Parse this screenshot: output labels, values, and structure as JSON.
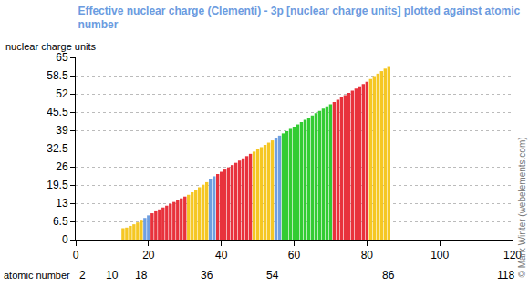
{
  "chart_data": {
    "type": "bar",
    "title": "Effective nuclear charge (Clementi) - 3p [nuclear charge units] plotted against atomic number",
    "ylabel": "nuclear charge units",
    "xlabel": "atomic number",
    "copyright": "© Mark Winter (webelements.com)",
    "x": [
      13,
      14,
      15,
      16,
      17,
      18,
      19,
      20,
      21,
      22,
      23,
      24,
      25,
      26,
      27,
      28,
      29,
      30,
      31,
      32,
      33,
      34,
      35,
      36,
      37,
      38,
      39,
      40,
      41,
      42,
      43,
      44,
      45,
      46,
      47,
      48,
      49,
      50,
      51,
      52,
      53,
      54,
      55,
      56,
      57,
      58,
      59,
      60,
      61,
      62,
      63,
      64,
      65,
      66,
      67,
      68,
      69,
      70,
      71,
      72,
      73,
      74,
      75,
      76,
      77,
      78,
      79,
      80,
      81,
      82,
      83,
      84,
      85,
      86
    ],
    "values": [
      4.07,
      4.29,
      4.89,
      5.48,
      6.12,
      6.76,
      7.73,
      8.66,
      9.41,
      10.1,
      10.79,
      11.47,
      12.11,
      12.78,
      13.44,
      14.09,
      14.73,
      15.37,
      16.0,
      16.9,
      17.8,
      18.7,
      19.6,
      20.5,
      21.7,
      22.6,
      23.4,
      24.2,
      25.0,
      25.8,
      26.6,
      27.4,
      28.2,
      29.0,
      29.8,
      30.6,
      31.4,
      32.2,
      33.0,
      33.8,
      34.6,
      35.4,
      36.3,
      37.1,
      37.9,
      38.7,
      39.5,
      40.3,
      41.1,
      41.9,
      42.7,
      43.5,
      44.3,
      45.1,
      45.9,
      46.7,
      47.5,
      48.3,
      49.1,
      49.9,
      50.7,
      51.5,
      52.3,
      53.1,
      53.9,
      54.7,
      55.5,
      56.3,
      57.3,
      58.3,
      59.2,
      60.1,
      61.0,
      61.9
    ],
    "colors": [
      "#f5c723",
      "#f5c723",
      "#f5c723",
      "#f5c723",
      "#f5c723",
      "#f5c723",
      "#6f9fe0",
      "#6f9fe0",
      "#e8323c",
      "#e8323c",
      "#e8323c",
      "#e8323c",
      "#e8323c",
      "#e8323c",
      "#e8323c",
      "#e8323c",
      "#e8323c",
      "#e8323c",
      "#f5c723",
      "#f5c723",
      "#f5c723",
      "#f5c723",
      "#f5c723",
      "#f5c723",
      "#6f9fe0",
      "#6f9fe0",
      "#e8323c",
      "#e8323c",
      "#e8323c",
      "#e8323c",
      "#e8323c",
      "#e8323c",
      "#e8323c",
      "#e8323c",
      "#e8323c",
      "#e8323c",
      "#f5c723",
      "#f5c723",
      "#f5c723",
      "#f5c723",
      "#f5c723",
      "#f5c723",
      "#6f9fe0",
      "#6f9fe0",
      "#33cc33",
      "#33cc33",
      "#33cc33",
      "#33cc33",
      "#33cc33",
      "#33cc33",
      "#33cc33",
      "#33cc33",
      "#33cc33",
      "#33cc33",
      "#33cc33",
      "#33cc33",
      "#33cc33",
      "#33cc33",
      "#e8323c",
      "#e8323c",
      "#e8323c",
      "#e8323c",
      "#e8323c",
      "#e8323c",
      "#e8323c",
      "#e8323c",
      "#e8323c",
      "#e8323c",
      "#f5c723",
      "#f5c723",
      "#f5c723",
      "#f5c723",
      "#f5c723",
      "#f5c723"
    ],
    "xlim": [
      0,
      120
    ],
    "xticks": [
      0,
      20,
      40,
      60,
      80,
      100,
      120
    ],
    "x2ticks": [
      2,
      10,
      18,
      36,
      54,
      86,
      118
    ],
    "ylim": [
      0,
      65
    ],
    "yticks": [
      0,
      6.5,
      13,
      19.5,
      26,
      32.5,
      39,
      45.5,
      52,
      58.5,
      65
    ],
    "grid": true
  }
}
